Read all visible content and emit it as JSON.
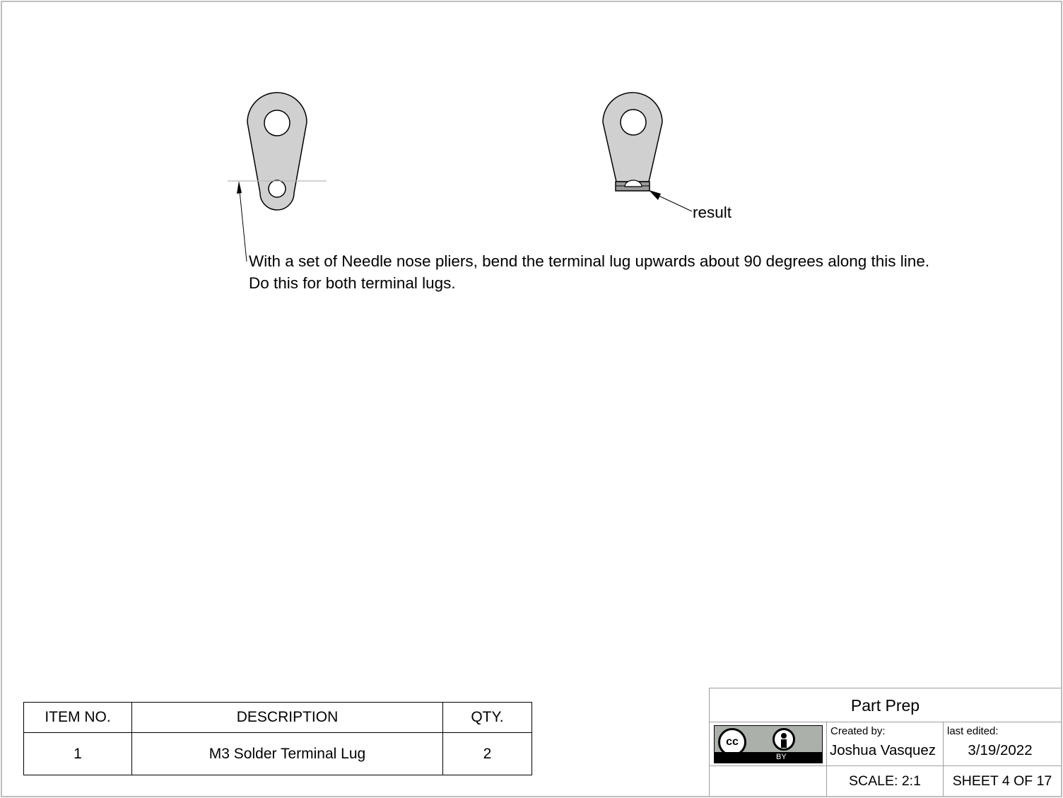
{
  "notes": {
    "instruction_line1": "With a set of Needle nose pliers, bend the terminal lug upwards about 90 degrees along this line.",
    "instruction_line2": "Do this for both terminal lugs.",
    "result_label": "result"
  },
  "bom": {
    "headers": [
      "ITEM NO.",
      "DESCRIPTION",
      "QTY."
    ],
    "rows": [
      {
        "item": "1",
        "description": "M3 Solder Terminal Lug",
        "qty": "2"
      }
    ]
  },
  "title_block": {
    "title": "Part Prep",
    "license_logo": {
      "left_mark": "cc",
      "bottom_text": "BY",
      "icons": [
        "creative-commons-icon",
        "attribution-person-icon"
      ]
    },
    "created_by_label": "Created by:",
    "created_by": "Joshua Vasquez",
    "last_edited_label": "last edited:",
    "last_edited": "3/19/2022",
    "scale": "SCALE: 2:1",
    "sheet": "SHEET 4 OF 17"
  },
  "colors": {
    "part_fill": "#d0d0d0",
    "sheet_border": "#bdbdbd",
    "logo_gray": "#abb1aa"
  }
}
